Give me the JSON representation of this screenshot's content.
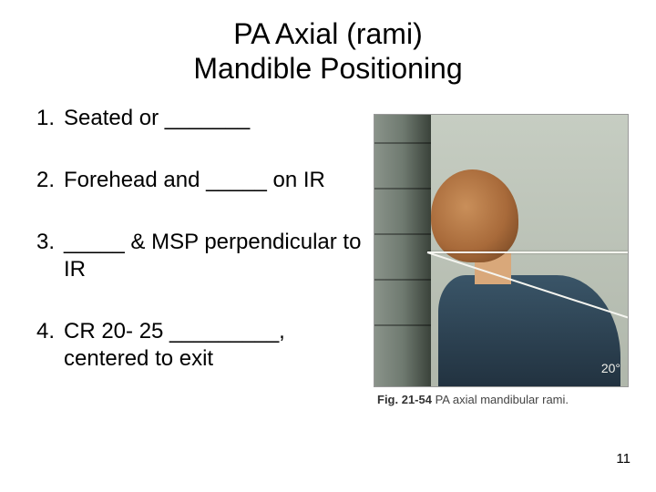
{
  "title": {
    "line1": "PA Axial (rami)",
    "line2": "Mandible Positioning"
  },
  "items": [
    {
      "num": "1.",
      "text": "Seated or _______"
    },
    {
      "num": "2.",
      "text": "Forehead and _____ on IR"
    },
    {
      "num": "3.",
      "text": "_____ & MSP perpendicular to IR"
    },
    {
      "num": "4.",
      "text": "CR 20- 25 _________, centered to exit"
    }
  ],
  "figure": {
    "angle_label": "20°",
    "caption_prefix": "Fig. 21-54",
    "caption_text": " PA axial mandibular rami."
  },
  "page_number": "11"
}
